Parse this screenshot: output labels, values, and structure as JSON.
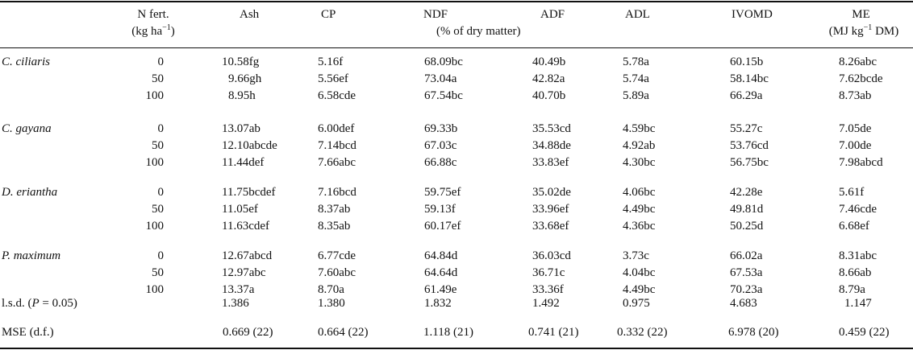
{
  "header": {
    "nfert_line1": "N fert.",
    "nfert_unit_pre": "(kg ha",
    "nfert_unit_sup": "−1",
    "nfert_unit_post": ")",
    "ash": "Ash",
    "cp": "CP",
    "ndf": "NDF",
    "adf": "ADF",
    "percent_dm": "(% of dry matter)",
    "adl": "ADL",
    "ivomd": "IVOMD",
    "me": "ME",
    "me_unit_pre": "(MJ kg",
    "me_unit_sup": "−1",
    "me_unit_post": " DM)"
  },
  "groups": [
    {
      "species": "C. ciliaris",
      "rows": [
        {
          "n": "0",
          "ash": "10.58fg",
          "cp": "5.16f",
          "ndf": "68.09bc",
          "adf": "40.49b",
          "adl": "5.78a",
          "ivomd": "60.15b",
          "me": "8.26abc"
        },
        {
          "n": "50",
          "ash": "9.66gh",
          "cp": "5.56ef",
          "ndf": "73.04a",
          "adf": "42.82a",
          "adl": "5.74a",
          "ivomd": "58.14bc",
          "me": "7.62bcde"
        },
        {
          "n": "100",
          "ash": "8.95h",
          "cp": "6.58cde",
          "ndf": "67.54bc",
          "adf": "40.70b",
          "adl": "5.89a",
          "ivomd": "66.29a",
          "me": "8.73ab"
        }
      ]
    },
    {
      "species": "C. gayana",
      "rows": [
        {
          "n": "0",
          "ash": "13.07ab",
          "cp": "6.00def",
          "ndf": "69.33b",
          "adf": "35.53cd",
          "adl": "4.59bc",
          "ivomd": "55.27c",
          "me": "7.05de"
        },
        {
          "n": "50",
          "ash": "12.10abcde",
          "cp": "7.14bcd",
          "ndf": "67.03c",
          "adf": "34.88de",
          "adl": "4.92ab",
          "ivomd": "53.76cd",
          "me": "7.00de"
        },
        {
          "n": "100",
          "ash": "11.44def",
          "cp": "7.66abc",
          "ndf": "66.88c",
          "adf": "33.83ef",
          "adl": "4.30bc",
          "ivomd": "56.75bc",
          "me": "7.98abcd"
        }
      ]
    },
    {
      "species": "D. eriantha",
      "rows": [
        {
          "n": "0",
          "ash": "11.75bcdef",
          "cp": "7.16bcd",
          "ndf": "59.75ef",
          "adf": "35.02de",
          "adl": "4.06bc",
          "ivomd": "42.28e",
          "me": "5.61f"
        },
        {
          "n": "50",
          "ash": "11.05ef",
          "cp": "8.37ab",
          "ndf": "59.13f",
          "adf": "33.96ef",
          "adl": "4.49bc",
          "ivomd": "49.81d",
          "me": "7.46cde"
        },
        {
          "n": "100",
          "ash": "11.63cdef",
          "cp": "8.35ab",
          "ndf": "60.17ef",
          "adf": "33.68ef",
          "adl": "4.36bc",
          "ivomd": "50.25d",
          "me": "6.68ef"
        }
      ]
    },
    {
      "species": "P. maximum",
      "rows": [
        {
          "n": "0",
          "ash": "12.67abcd",
          "cp": "6.77cde",
          "ndf": "64.84d",
          "adf": "36.03cd",
          "adl": "3.73c",
          "ivomd": "66.02a",
          "me": "8.31abc"
        },
        {
          "n": "50",
          "ash": "12.97abc",
          "cp": "7.60abc",
          "ndf": "64.64d",
          "adf": "36.71c",
          "adl": "4.04bc",
          "ivomd": "67.53a",
          "me": "8.66ab"
        },
        {
          "n": "100",
          "ash": "13.37a",
          "cp": "8.70a",
          "ndf": "61.49e",
          "adf": "33.36f",
          "adl": "4.49bc",
          "ivomd": "70.23a",
          "me": "8.79a"
        }
      ]
    }
  ],
  "lsd": {
    "label_pre": "l.s.d. (",
    "label_p": "P",
    "label_post": " = 0.05)",
    "ash": "1.386",
    "cp": "1.380",
    "ndf": "1.832",
    "adf": "1.492",
    "adl": "0.975",
    "ivomd": "4.683",
    "me": "1.147"
  },
  "mse": {
    "label": "MSE (d.f.)",
    "ash": "0.669 (22)",
    "cp": "0.664 (22)",
    "ndf": "1.118 (21)",
    "adf": "0.741 (21)",
    "adl": "0.332 (22)",
    "ivomd": "6.978 (20)",
    "me": "0.459 (22)"
  }
}
